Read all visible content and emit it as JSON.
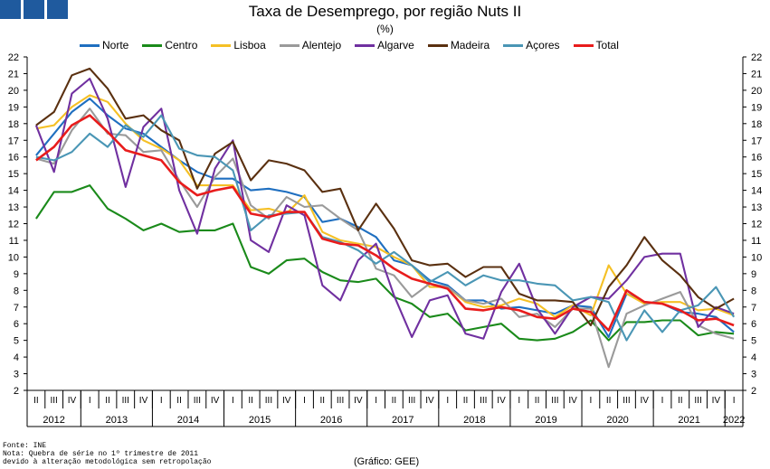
{
  "header": {
    "title": "Taxa de Desemprego, por região Nuts II",
    "subtitle": "(%)"
  },
  "footer": {
    "source": "Fonte: INE",
    "note_line1": "Nota: Quebra de série no 1º trimestre de 2011",
    "note_line2": "devido à alteração metodológica sem retropolação",
    "credit": "(Gráfico: GEE)"
  },
  "chart_data": {
    "type": "line",
    "quarter_labels": [
      "II",
      "III",
      "IV",
      "I",
      "II",
      "III",
      "IV",
      "I",
      "II",
      "III",
      "IV",
      "I",
      "II",
      "III",
      "IV",
      "I",
      "II",
      "III",
      "IV",
      "I",
      "II",
      "III",
      "IV",
      "I",
      "II",
      "III",
      "IV",
      "I",
      "II",
      "III",
      "IV",
      "I",
      "II",
      "III",
      "IV",
      "I",
      "II",
      "III",
      "IV",
      "I"
    ],
    "years": [
      {
        "label": "2012",
        "start": 0,
        "end": 2
      },
      {
        "label": "2013",
        "start": 3,
        "end": 6
      },
      {
        "label": "2014",
        "start": 7,
        "end": 10
      },
      {
        "label": "2015",
        "start": 11,
        "end": 14
      },
      {
        "label": "2016",
        "start": 15,
        "end": 18
      },
      {
        "label": "2017",
        "start": 19,
        "end": 22
      },
      {
        "label": "2018",
        "start": 23,
        "end": 26
      },
      {
        "label": "2019",
        "start": 27,
        "end": 30
      },
      {
        "label": "2020",
        "start": 31,
        "end": 34
      },
      {
        "label": "2021",
        "start": 35,
        "end": 38
      },
      {
        "label": "2022",
        "start": 39,
        "end": 39
      }
    ],
    "ylim": [
      2,
      22
    ],
    "yticks": [
      "2",
      "3",
      "4",
      "5",
      "6",
      "7",
      "8",
      "9",
      "10",
      "11",
      "12",
      "13",
      "14",
      "15",
      "16",
      "17",
      "18",
      "19",
      "20",
      "21",
      "22"
    ],
    "grid": false,
    "legend_position": "top",
    "series": [
      {
        "name": "Norte",
        "color": "#1f6fc0",
        "values": [
          16.1,
          17.4,
          18.7,
          19.5,
          18.5,
          17.7,
          17.4,
          16.6,
          15.8,
          15.1,
          14.7,
          14.7,
          14.0,
          14.1,
          13.9,
          13.6,
          12.1,
          12.3,
          11.8,
          11.2,
          9.8,
          9.5,
          8.6,
          8.3,
          7.4,
          7.4,
          6.9,
          7.0,
          6.8,
          6.6,
          7.1,
          7.0,
          5.2,
          7.8,
          7.3,
          7.2,
          6.7,
          6.6,
          6.4,
          5.5
        ]
      },
      {
        "name": "Centro",
        "color": "#1a8a1a",
        "values": [
          12.3,
          13.9,
          13.9,
          14.3,
          12.9,
          12.3,
          11.6,
          12.0,
          11.5,
          11.6,
          11.6,
          12.0,
          9.4,
          9.0,
          9.8,
          9.9,
          9.1,
          8.6,
          8.5,
          8.7,
          7.6,
          7.2,
          6.4,
          6.6,
          5.6,
          5.8,
          6.0,
          5.1,
          5.0,
          5.1,
          5.5,
          6.2,
          5.0,
          6.1,
          6.1,
          6.2,
          6.2,
          5.3,
          5.5,
          5.4
        ]
      },
      {
        "name": "Lisboa",
        "color": "#f5c025",
        "values": [
          17.7,
          17.9,
          19.0,
          19.7,
          19.3,
          18.0,
          17.0,
          16.5,
          15.8,
          14.3,
          14.3,
          14.3,
          12.8,
          12.9,
          12.6,
          13.7,
          11.5,
          11.0,
          10.8,
          10.6,
          10.0,
          9.5,
          8.2,
          8.2,
          7.3,
          7.0,
          7.1,
          7.5,
          7.2,
          6.4,
          7.1,
          6.5,
          9.5,
          7.8,
          7.2,
          7.3,
          7.3,
          6.8,
          6.9,
          6.5
        ]
      },
      {
        "name": "Alentejo",
        "color": "#9a9a9a",
        "values": [
          15.9,
          15.6,
          17.6,
          18.9,
          17.4,
          17.3,
          16.3,
          16.4,
          14.6,
          13.0,
          14.8,
          15.9,
          13.1,
          12.3,
          13.6,
          13.0,
          13.1,
          12.3,
          11.6,
          9.3,
          8.9,
          7.6,
          8.4,
          8.2,
          7.4,
          7.2,
          7.5,
          6.4,
          6.6,
          5.8,
          6.9,
          6.9,
          3.4,
          6.6,
          7.1,
          7.5,
          7.9,
          5.9,
          5.4,
          5.1
        ]
      },
      {
        "name": "Algarve",
        "color": "#7030a0",
        "values": [
          17.9,
          15.1,
          19.8,
          20.7,
          18.3,
          14.2,
          17.8,
          18.9,
          14.0,
          11.4,
          15.3,
          17.0,
          11.0,
          10.3,
          13.1,
          12.5,
          8.3,
          7.4,
          9.8,
          10.8,
          7.7,
          5.2,
          7.4,
          7.7,
          5.4,
          5.1,
          7.9,
          9.6,
          6.9,
          5.4,
          7.0,
          7.6,
          7.5,
          8.6,
          10.0,
          10.2,
          10.2,
          5.8,
          7.0,
          6.6
        ]
      },
      {
        "name": "Madeira",
        "color": "#5a3010",
        "values": [
          17.9,
          18.7,
          20.9,
          21.3,
          20.1,
          18.3,
          18.5,
          17.6,
          17.0,
          14.1,
          16.2,
          16.9,
          14.6,
          15.8,
          15.6,
          15.2,
          13.9,
          14.1,
          11.6,
          13.2,
          11.7,
          9.8,
          9.5,
          9.6,
          8.8,
          9.4,
          9.4,
          7.8,
          7.4,
          7.4,
          7.3,
          5.9,
          8.2,
          9.5,
          11.2,
          9.8,
          8.9,
          7.6,
          6.9,
          7.5
        ]
      },
      {
        "name": "Açores",
        "color": "#4a96b5",
        "values": [
          16.0,
          15.8,
          16.3,
          17.4,
          16.6,
          17.9,
          17.2,
          18.5,
          16.5,
          16.1,
          16.0,
          15.2,
          11.6,
          12.5,
          12.6,
          12.7,
          11.2,
          10.9,
          10.4,
          9.6,
          10.3,
          9.5,
          8.5,
          9.1,
          8.3,
          8.9,
          8.6,
          8.6,
          8.4,
          8.3,
          7.4,
          7.6,
          7.3,
          5.0,
          6.8,
          5.5,
          6.8,
          7.1,
          8.2,
          6.4
        ]
      },
      {
        "name": "Total",
        "color": "#e81c1c",
        "values": [
          15.8,
          16.6,
          17.9,
          18.5,
          17.5,
          16.4,
          16.1,
          15.8,
          14.5,
          13.7,
          14.0,
          14.2,
          12.6,
          12.4,
          12.7,
          12.7,
          11.1,
          10.8,
          10.7,
          10.1,
          9.3,
          8.7,
          8.4,
          8.1,
          6.9,
          6.8,
          7.0,
          6.8,
          6.4,
          6.3,
          6.9,
          6.7,
          5.6,
          8.0,
          7.3,
          7.2,
          6.8,
          6.2,
          6.3,
          5.9
        ]
      }
    ]
  }
}
